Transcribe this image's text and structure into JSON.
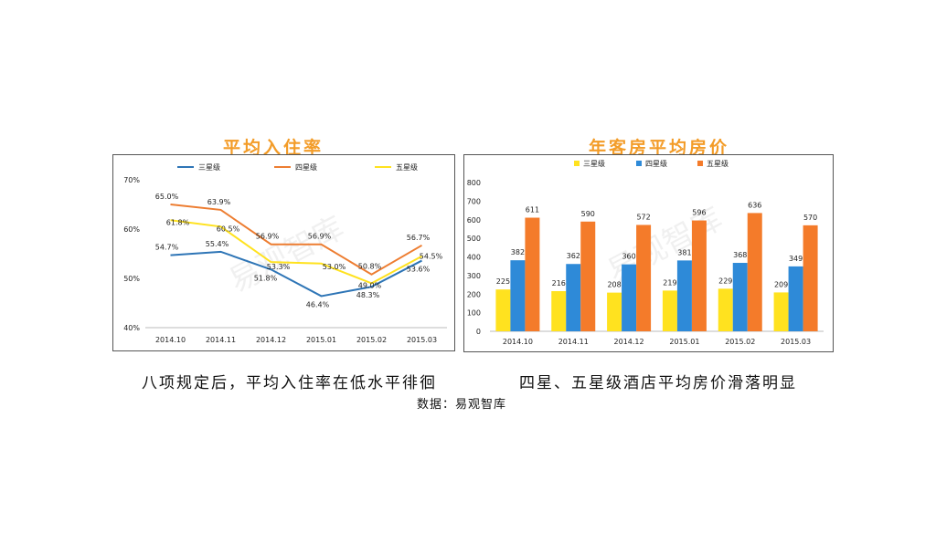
{
  "colors": {
    "three_star": "#ffe21f",
    "three_star_line": "#2e75b6",
    "four_star": "#ed7d31",
    "five_star": "#ffe21f",
    "bar_three": "#ffe21f",
    "bar_four": "#2e8ad8",
    "bar_five": "#f47b2a",
    "title": "#f39c28"
  },
  "captions": {
    "left": "八项规定后，平均入住率在低水平徘徊",
    "right": "四星、五星级酒店平均房价滑落明显",
    "source": "数据：易观智库"
  },
  "watermark": "易观智库",
  "chart_data": [
    {
      "type": "line",
      "title": "平均入住率",
      "categories": [
        "2014.10",
        "2014.11",
        "2014.12",
        "2015.01",
        "2015.02",
        "2015.03"
      ],
      "series": [
        {
          "name": "三星级",
          "values": [
            54.7,
            55.4,
            51.8,
            46.4,
            48.3,
            53.6
          ],
          "labels": [
            "54.7%",
            "55.4%",
            "51.8%",
            "46.4%",
            "48.3%",
            "53.6%"
          ]
        },
        {
          "name": "四星级",
          "values": [
            65.0,
            63.9,
            56.9,
            56.9,
            50.8,
            56.7
          ],
          "labels": [
            "65.0%",
            "63.9%",
            "56.9%",
            "56.9%",
            "50.8%",
            "56.7%"
          ]
        },
        {
          "name": "五星级",
          "values": [
            61.8,
            60.5,
            53.3,
            53.0,
            49.0,
            54.5
          ],
          "labels": [
            "61.8%",
            "60.5%",
            "53.3%",
            "53.0%",
            "49.0%",
            "54.5%"
          ]
        }
      ],
      "ylim": [
        40,
        70
      ],
      "yticks": [
        "40%",
        "50%",
        "60%",
        "70%"
      ],
      "legend": "top",
      "grid": false
    },
    {
      "type": "bar",
      "title": "年客房平均房价",
      "categories": [
        "2014.10",
        "2014.11",
        "2014.12",
        "2015.01",
        "2015.02",
        "2015.03"
      ],
      "series": [
        {
          "name": "三星级",
          "values": [
            225,
            216,
            208,
            219,
            229,
            209
          ]
        },
        {
          "name": "四星级",
          "values": [
            382,
            362,
            360,
            381,
            368,
            349
          ]
        },
        {
          "name": "五星级",
          "values": [
            611,
            590,
            572,
            596,
            636,
            570
          ]
        }
      ],
      "ylim": [
        0,
        800
      ],
      "yticks": [
        "0",
        "100",
        "200",
        "300",
        "400",
        "500",
        "600",
        "700",
        "800"
      ],
      "legend": "top",
      "grid": false
    }
  ]
}
